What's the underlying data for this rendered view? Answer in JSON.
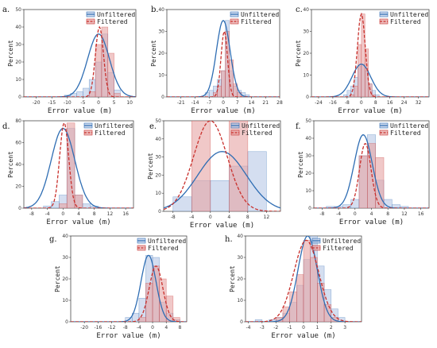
{
  "legend": {
    "unfiltered": "Unfiltered",
    "filtered": "Filtered"
  },
  "colors": {
    "unfiltered_fill": "#b7c8e6",
    "unfiltered_line": "#2e6db3",
    "filtered_fill": "#e6a3a3",
    "filtered_line": "#c9302c"
  },
  "chart_data": [
    {
      "panel_label": "a.",
      "type": "bar",
      "xlabel": "Error value (m)",
      "ylabel": "Percent",
      "xlim": [
        -24,
        12
      ],
      "ylim": [
        0,
        50
      ],
      "xticks": [
        -20,
        -15,
        -10,
        -5,
        0,
        5,
        10
      ],
      "yticks": [
        0,
        10,
        20,
        30,
        40,
        50
      ],
      "bins": [
        -11,
        -9,
        -7,
        -5,
        -3,
        -1,
        1,
        3,
        5
      ],
      "series": [
        {
          "name": "Unfiltered",
          "values": [
            1,
            2,
            3,
            5,
            10,
            20,
            36,
            14,
            4
          ],
          "fit": {
            "mean": 0,
            "sd": 3.5
          }
        },
        {
          "name": "Filtered",
          "values": [
            0,
            0,
            0,
            0,
            3,
            30,
            40,
            25,
            2
          ],
          "fit": {
            "mean": 0.3,
            "sd": 1.3
          }
        }
      ]
    },
    {
      "panel_label": "b.",
      "type": "bar",
      "xlabel": "Error value (m)",
      "ylabel": "Percent",
      "xlim": [
        -28,
        28
      ],
      "ylim": [
        0,
        40
      ],
      "xticks": [
        -21,
        -14,
        -7,
        0,
        7,
        14,
        21,
        28
      ],
      "yticks": [
        0,
        10,
        20,
        30,
        40
      ],
      "bins": [
        -9,
        -7,
        -5,
        -3,
        -1,
        1,
        3,
        5,
        7,
        9,
        11
      ],
      "series": [
        {
          "name": "Unfiltered",
          "values": [
            2,
            3,
            5,
            8,
            12,
            35,
            12,
            5,
            3,
            2,
            1
          ],
          "fit": {
            "mean": 0,
            "sd": 3.4
          }
        },
        {
          "name": "Filtered",
          "values": [
            0,
            0,
            2,
            5,
            12,
            30,
            17,
            6,
            2,
            0,
            0
          ],
          "fit": {
            "mean": 0.5,
            "sd": 1.6
          }
        }
      ]
    },
    {
      "panel_label": "c.",
      "type": "bar",
      "xlabel": "Error value (m)",
      "ylabel": "Percent",
      "xlim": [
        -28,
        38
      ],
      "ylim": [
        0,
        40
      ],
      "xticks": [
        -24,
        -16,
        -8,
        0,
        8,
        16,
        24,
        32
      ],
      "yticks": [
        0,
        10,
        20,
        30,
        40
      ],
      "bins": [
        -10,
        -8,
        -6,
        -4,
        -2,
        0,
        2,
        4,
        6,
        8
      ],
      "series": [
        {
          "name": "Unfiltered",
          "values": [
            1,
            3,
            5,
            9,
            14,
            15,
            12,
            6,
            3,
            1
          ],
          "fit": {
            "mean": 0,
            "sd": 5.3
          }
        },
        {
          "name": "Filtered",
          "values": [
            0,
            0,
            1,
            5,
            24,
            38,
            22,
            6,
            1,
            0
          ],
          "fit": {
            "mean": 0,
            "sd": 2.2
          }
        }
      ]
    },
    {
      "panel_label": "d.",
      "type": "bar",
      "xlabel": "Error value (m)",
      "ylabel": "Percent",
      "xlim": [
        -10,
        18
      ],
      "ylim": [
        0,
        80
      ],
      "xticks": [
        -8,
        -4,
        0,
        4,
        8,
        12,
        16
      ],
      "yticks": [
        0,
        20,
        40,
        60,
        80
      ],
      "bins": [
        -5,
        -3,
        -1,
        1,
        3,
        5,
        7
      ],
      "series": [
        {
          "name": "Unfiltered",
          "values": [
            2,
            6,
            12,
            73,
            12,
            4,
            2
          ],
          "fit": {
            "mean": 0,
            "sd": 3
          }
        },
        {
          "name": "Filtered",
          "values": [
            0,
            0,
            4,
            78,
            12,
            0,
            0
          ],
          "fit": {
            "mean": 0.3,
            "sd": 1.15
          }
        }
      ]
    },
    {
      "panel_label": "e.",
      "type": "bar",
      "xlabel": "Error value (m)",
      "ylabel": "Percent",
      "xlim": [
        -10,
        15
      ],
      "ylim": [
        0,
        50
      ],
      "xticks": [
        -8,
        -4,
        0,
        4,
        8,
        12
      ],
      "yticks": [
        0,
        10,
        20,
        30,
        40,
        50
      ],
      "bins": [
        -8,
        -4,
        0,
        4,
        8
      ],
      "series": [
        {
          "name": "Unfiltered",
          "values": [
            8,
            17,
            17,
            25,
            33
          ],
          "fit": {
            "mean": 2.5,
            "sd": 5.2
          }
        },
        {
          "name": "Filtered",
          "values": [
            0,
            50,
            0,
            50,
            0
          ],
          "fit": {
            "mean": 0,
            "sd": 3.6
          }
        }
      ]
    },
    {
      "panel_label": "f.",
      "type": "bar",
      "xlabel": "Error value (m)",
      "ylabel": "Percent",
      "xlim": [
        -10,
        18
      ],
      "ylim": [
        0,
        50
      ],
      "xticks": [
        -8,
        -4,
        0,
        4,
        8,
        12,
        16
      ],
      "yticks": [
        0,
        10,
        20,
        30,
        40,
        50
      ],
      "bins": [
        -7,
        -5,
        -3,
        -1,
        1,
        3,
        5,
        7,
        9,
        11
      ],
      "series": [
        {
          "name": "Unfiltered",
          "values": [
            1,
            1,
            2,
            5,
            30,
            42,
            16,
            5,
            2,
            1
          ],
          "fit": {
            "mean": 2,
            "sd": 2.2
          }
        },
        {
          "name": "Filtered",
          "values": [
            0,
            0,
            0,
            0,
            30,
            37,
            29,
            0,
            0,
            0
          ],
          "fit": {
            "mean": 2.5,
            "sd": 1.4
          }
        }
      ]
    },
    {
      "panel_label": "g.",
      "type": "bar",
      "xlabel": "Error value (m)",
      "ylabel": "Percent",
      "xlim": [
        -24,
        10
      ],
      "ylim": [
        0,
        40
      ],
      "xticks": [
        -20,
        -16,
        -12,
        -8,
        -4,
        0,
        4,
        8
      ],
      "yticks": [
        0,
        10,
        20,
        30,
        40
      ],
      "bins": [
        -8,
        -6,
        -4,
        -2,
        0,
        2,
        4,
        6
      ],
      "series": [
        {
          "name": "Unfiltered",
          "values": [
            2,
            4,
            11,
            31,
            30,
            9,
            4,
            1
          ],
          "fit": {
            "mean": -1.2,
            "sd": 2.2
          }
        },
        {
          "name": "Filtered",
          "values": [
            0,
            0,
            2,
            18,
            26,
            20,
            12,
            2
          ],
          "fit": {
            "mean": 1,
            "sd": 2
          }
        }
      ]
    },
    {
      "panel_label": "h.",
      "type": "bar",
      "xlabel": "Error value (m)",
      "ylabel": "Percent",
      "xlim": [
        -4.2,
        4.2
      ],
      "ylim": [
        0,
        40
      ],
      "xticks": [
        -4,
        -3,
        -2,
        -1,
        0,
        1,
        2,
        3
      ],
      "yticks": [
        0,
        10,
        20,
        30,
        40
      ],
      "bins": [
        -3.5,
        -2.5,
        -2,
        -1.5,
        -1,
        -0.5,
        0,
        0.5,
        1,
        1.5,
        2,
        2.5
      ],
      "series": [
        {
          "name": "Unfiltered",
          "values": [
            1,
            1,
            2,
            4,
            9,
            17,
            29,
            40,
            26,
            15,
            6,
            2
          ],
          "fit": {
            "mean": 0.3,
            "sd": 0.7
          }
        },
        {
          "name": "Filtered",
          "values": [
            0,
            0,
            2,
            7,
            14,
            22,
            38,
            30,
            18,
            8,
            2,
            0
          ],
          "fit": {
            "mean": 0.2,
            "sd": 0.9
          }
        }
      ]
    }
  ]
}
